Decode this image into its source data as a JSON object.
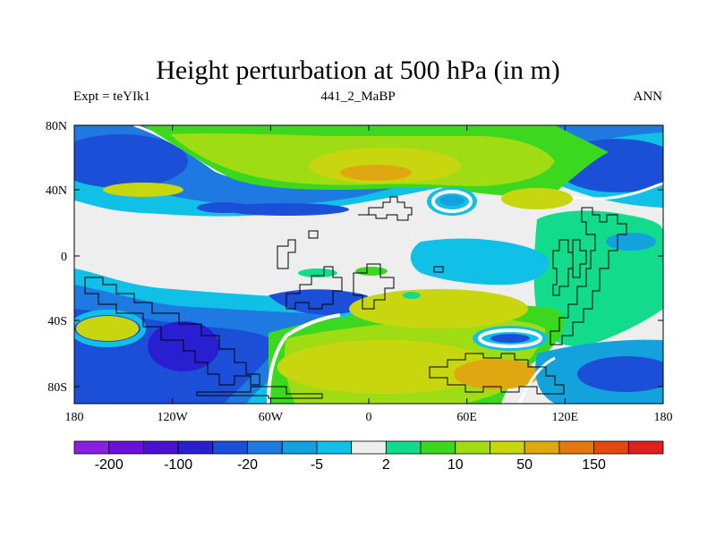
{
  "title": "Height perturbation at 500 hPa (in m)",
  "left_string": "Expt = teYIk1",
  "center_string": "441_2_MaBP",
  "right_string": "ANN",
  "lat_ticks": [
    "80N",
    "40N",
    "0",
    "40S",
    "80S"
  ],
  "lon_ticks": [
    "180",
    "120W",
    "60W",
    "0",
    "60E",
    "120E",
    "180"
  ],
  "colors": {
    "c_neg200": "#8a1fe0",
    "c_neg150": "#6a10d8",
    "c_neg100": "#4a12d0",
    "c_neg50": "#2a1fd0",
    "c_neg20": "#1c4fd8",
    "c_neg10": "#1e7ae0",
    "c_neg5": "#14a2dc",
    "c_neg2": "#10c0e6",
    "c_zero": "#eeeeee",
    "c_pos2": "#12dc8c",
    "c_pos5": "#3cd820",
    "c_pos10": "#a0dc14",
    "c_pos20": "#c8d610",
    "c_pos50": "#e0a810",
    "c_pos100": "#e07a10",
    "c_pos150": "#e04a10",
    "c_pos200": "#e0201e"
  },
  "colorbar": {
    "labels": [
      "-200",
      "-100",
      "-20",
      "-5",
      "2",
      "10",
      "50",
      "150"
    ]
  }
}
